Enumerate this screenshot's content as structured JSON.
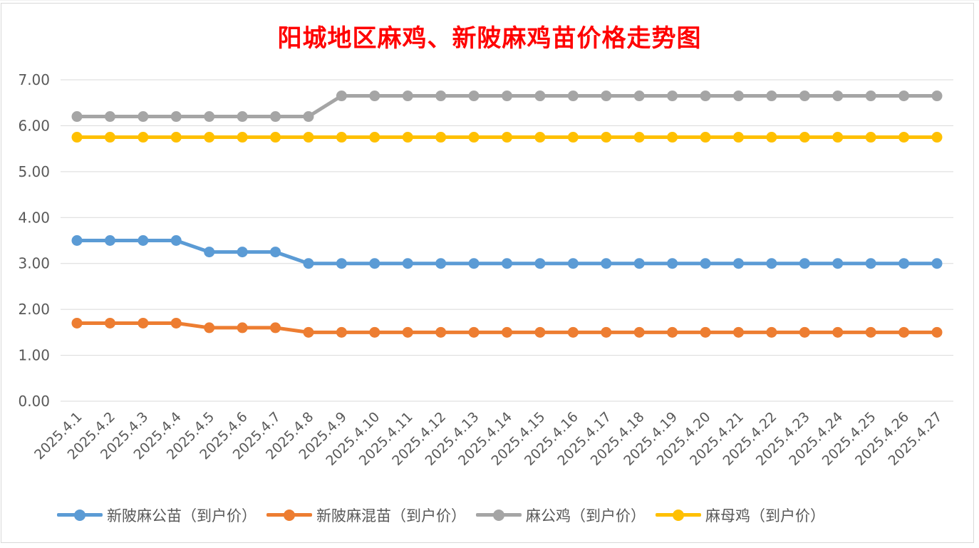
{
  "chart_data": {
    "type": "line",
    "title": "阳城地区麻鸡、新陂麻鸡苗价格走势图",
    "xlabel": "",
    "ylabel": "",
    "ylim": [
      0,
      7
    ],
    "yticks": [
      "0.00",
      "1.00",
      "2.00",
      "3.00",
      "4.00",
      "5.00",
      "6.00",
      "7.00"
    ],
    "grid": true,
    "legend_position": "bottom",
    "categories": [
      "2025.4.1",
      "2025.4.2",
      "2025.4.3",
      "2025.4.4",
      "2025.4.5",
      "2025.4.6",
      "2025.4.7",
      "2025.4.8",
      "2025.4.9",
      "2025.4.10",
      "2025.4.11",
      "2025.4.12",
      "2025.4.13",
      "2025.4.14",
      "2025.4.15",
      "2025.4.16",
      "2025.4.17",
      "2025.4.18",
      "2025.4.19",
      "2025.4.20",
      "2025.4.21",
      "2025.4.22",
      "2025.4.23",
      "2025.4.24",
      "2025.4.25",
      "2025.4.26",
      "2025.4.27"
    ],
    "series": [
      {
        "name": "新陂麻公苗（到户价）",
        "color": "#5b9bd5",
        "values": [
          3.5,
          3.5,
          3.5,
          3.5,
          3.25,
          3.25,
          3.25,
          3.0,
          3.0,
          3.0,
          3.0,
          3.0,
          3.0,
          3.0,
          3.0,
          3.0,
          3.0,
          3.0,
          3.0,
          3.0,
          3.0,
          3.0,
          3.0,
          3.0,
          3.0,
          3.0,
          3.0
        ]
      },
      {
        "name": "新陂麻混苗（到户价）",
        "color": "#ed7d31",
        "values": [
          1.7,
          1.7,
          1.7,
          1.7,
          1.6,
          1.6,
          1.6,
          1.5,
          1.5,
          1.5,
          1.5,
          1.5,
          1.5,
          1.5,
          1.5,
          1.5,
          1.5,
          1.5,
          1.5,
          1.5,
          1.5,
          1.5,
          1.5,
          1.5,
          1.5,
          1.5,
          1.5
        ]
      },
      {
        "name": "麻公鸡（到户价）",
        "color": "#a5a5a5",
        "values": [
          6.2,
          6.2,
          6.2,
          6.2,
          6.2,
          6.2,
          6.2,
          6.2,
          6.65,
          6.65,
          6.65,
          6.65,
          6.65,
          6.65,
          6.65,
          6.65,
          6.65,
          6.65,
          6.65,
          6.65,
          6.65,
          6.65,
          6.65,
          6.65,
          6.65,
          6.65,
          6.65
        ]
      },
      {
        "name": "麻母鸡（到户价）",
        "color": "#ffc000",
        "values": [
          5.75,
          5.75,
          5.75,
          5.75,
          5.75,
          5.75,
          5.75,
          5.75,
          5.75,
          5.75,
          5.75,
          5.75,
          5.75,
          5.75,
          5.75,
          5.75,
          5.75,
          5.75,
          5.75,
          5.75,
          5.75,
          5.75,
          5.75,
          5.75,
          5.75,
          5.75,
          5.75
        ]
      }
    ]
  }
}
